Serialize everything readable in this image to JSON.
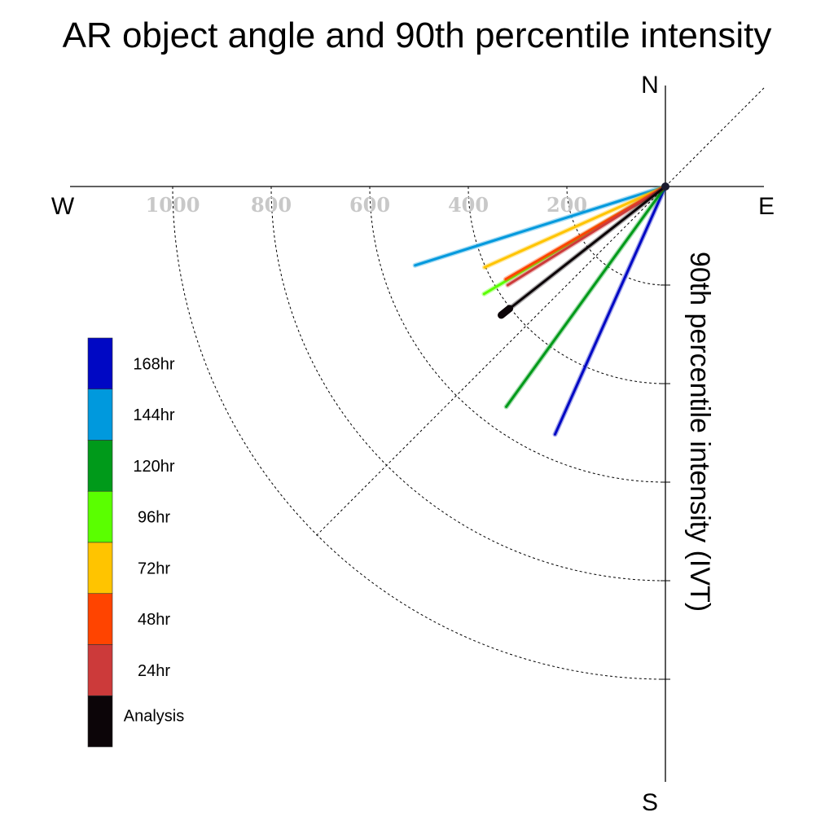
{
  "chart_data": {
    "type": "line",
    "title": "AR object angle and 90th percentile intensity",
    "ylabel": "90th percentile intensity (IVT)",
    "directions": {
      "north": "N",
      "south": "S",
      "east": "E",
      "west": "W"
    },
    "radial_ticks": [
      "200",
      "400",
      "600",
      "800",
      "1000"
    ],
    "radial_tick_values": [
      200,
      400,
      600,
      800,
      1000
    ],
    "radial_range": [
      0,
      1000
    ],
    "grid": true,
    "legend_position": "left",
    "series": [
      {
        "name": "168hr",
        "color": "#0008c4",
        "intensity": 569,
        "x": -224,
        "y": -503
      },
      {
        "name": "144hr",
        "color": "#0099dd",
        "intensity": 532,
        "x": -508,
        "y": -160
      },
      {
        "name": "120hr",
        "color": "#009a1a",
        "intensity": 524,
        "x": -323,
        "y": -447
      },
      {
        "name": "96hr",
        "color": "#5aff00",
        "intensity": 393,
        "x": -368,
        "y": -218
      },
      {
        "name": "72hr",
        "color": "#ffc400",
        "intensity": 362,
        "x": -367,
        "y": -164
      },
      {
        "name": "48hr",
        "color": "#ff4400",
        "intensity": 343,
        "x": -324,
        "y": -188
      },
      {
        "name": "24hr",
        "color": "#cc3a3a",
        "intensity": 345,
        "x": -320,
        "y": -200
      },
      {
        "name": "Analysis",
        "color": "#0c0508",
        "intensity": 383,
        "x": -333,
        "y": -261
      }
    ]
  }
}
